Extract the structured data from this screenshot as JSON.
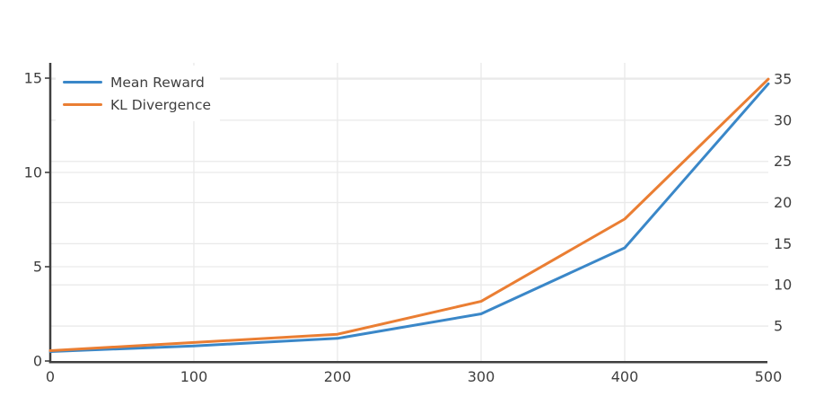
{
  "chart_data": {
    "type": "line",
    "title": "",
    "xlabel": "",
    "x": [
      0,
      100,
      200,
      300,
      400,
      500
    ],
    "series": [
      {
        "name": "Mean Reward",
        "yaxis": "left",
        "color": "#3a87c8",
        "values": [
          0.5,
          0.8,
          1.2,
          2.5,
          6.0,
          14.7
        ]
      },
      {
        "name": "KL Divergence",
        "yaxis": "right",
        "color": "#ea7e33",
        "values": [
          2,
          3,
          4,
          8,
          18,
          35
        ]
      }
    ],
    "x_axis": {
      "range": [
        0,
        500
      ],
      "ticks": [
        0,
        100,
        200,
        300,
        400,
        500
      ]
    },
    "left_axis": {
      "range": [
        0,
        15.81
      ],
      "ticks": [
        0,
        5,
        10,
        15
      ]
    },
    "right_axis": {
      "range": [
        0.75,
        36.97
      ],
      "ticks": [
        5,
        10,
        15,
        20,
        25,
        30,
        35
      ]
    },
    "legend": {
      "position": "top-left"
    },
    "grid": true
  },
  "style": {
    "background": "#ffffff",
    "axis_color": "#3f3f3f",
    "grid_color": "#e9e9e9",
    "text_color": "#3f3f3f"
  }
}
